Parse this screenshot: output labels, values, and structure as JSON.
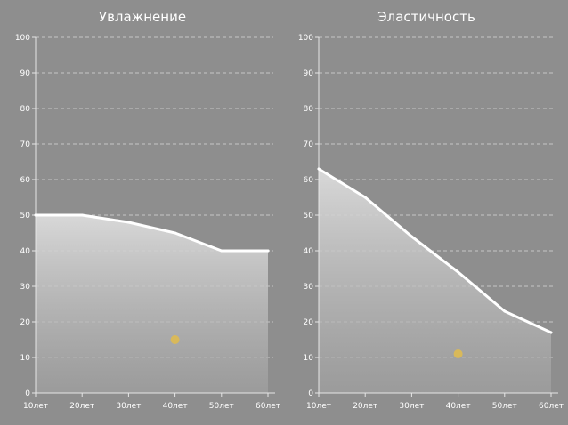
{
  "colors": {
    "background": "#8e8e8e",
    "line": "#ffffff",
    "grid": "#d0d0d0",
    "marker": "#d9b95a",
    "area_top": "#dcdcdc",
    "area_bottom": "#a4a4a4"
  },
  "chart_data": [
    {
      "type": "area",
      "title": "Увлажнение",
      "categories": [
        "10лет",
        "20лет",
        "30лет",
        "40лет",
        "50лет",
        "60лет"
      ],
      "ylim": [
        0,
        100
      ],
      "yticks": [
        "0",
        "10",
        "20",
        "30",
        "40",
        "50",
        "60",
        "70",
        "80",
        "90",
        "100"
      ],
      "grid": true,
      "series": [
        {
          "values": [
            50,
            50,
            48,
            45,
            40,
            40
          ]
        }
      ],
      "markers": [
        {
          "x": "40лет",
          "y": 15
        }
      ]
    },
    {
      "type": "area",
      "title": "Эластичность",
      "categories": [
        "10лет",
        "20лет",
        "30лет",
        "40лет",
        "50лет",
        "60лет"
      ],
      "ylim": [
        0,
        100
      ],
      "yticks": [
        "0",
        "10",
        "20",
        "30",
        "40",
        "50",
        "60",
        "70",
        "80",
        "90",
        "100"
      ],
      "grid": true,
      "series": [
        {
          "values": [
            63,
            55,
            44,
            34,
            23,
            17
          ]
        }
      ],
      "markers": [
        {
          "x": "40лет",
          "y": 11
        }
      ]
    }
  ]
}
